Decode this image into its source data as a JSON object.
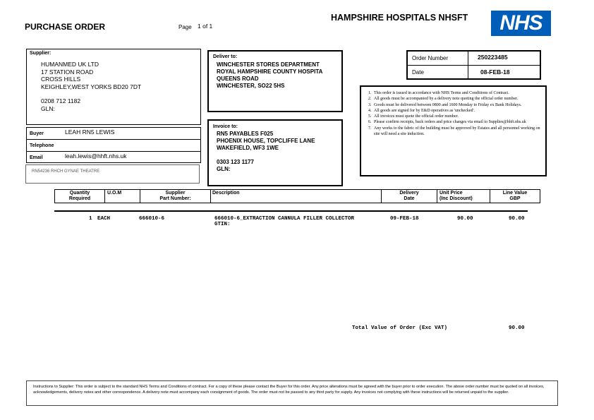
{
  "header": {
    "title": "PURCHASE ORDER",
    "page_label": "Page",
    "page_value": "1 of 1",
    "org": "HAMPSHIRE HOSPITALS NHSFT",
    "logo": "NHS",
    "logo_color": "#005EB8"
  },
  "supplier": {
    "label": "Supplier:",
    "lines": [
      "HUMANMED UK LTD",
      "17 STATION ROAD",
      "CROSS HILLS",
      "KEIGHLEY,WEST YORKS BD20 7DT"
    ],
    "phone": "0208 712 1182",
    "gln": "GLN:"
  },
  "buyer": {
    "buyer_label": "Buyer",
    "buyer": "LEAH RN5 LEWIS",
    "telephone_label": "Telephone",
    "telephone": "",
    "email_label": "Email",
    "email": "leah.lewis@hhft.nhs.uk",
    "ref": "RN54236 RHCH GYNAE THEATRE"
  },
  "deliver": {
    "label": "Deliver to:",
    "lines": [
      "WINCHESTER STORES DEPARTMENT",
      "ROYAL HAMPSHIRE COUNTY HOSPITA",
      "QUEENS ROAD",
      "WINCHESTER, SO22 5HS"
    ]
  },
  "invoice": {
    "label": "Invoice to:",
    "lines": [
      "RN5 PAYABLES F025",
      "PHOENIX HOUSE, TOPCLIFFE LANE",
      "WAKEFIELD, WF3 1WE"
    ],
    "phone": "0303 123 1177",
    "gln": "GLN:"
  },
  "order": {
    "number_label": "Order Number",
    "number": "250223485",
    "date_label": "Date",
    "date": "08-FEB-18"
  },
  "terms": [
    "This order is issued in accordance with NHS Terms and Conditions of Contract.",
    "All goods must be accompanied by a delivery note quoting the official order number.",
    "Goods must be delivered between 0800 and 1600 Monday to Friday ex Bank Holidays.",
    "All goods are signed for by E&D operatives as 'unchecked'.",
    "All invoices must quote the official order number.",
    "Please confirm receipts, back orders and price changes via email to Supplies@hhft.nhs.uk",
    "Any works to the fabric of the building must be approved by Estates and all personnel working on site will need a site induction."
  ],
  "table": {
    "headers": [
      "Quantity\nRequired",
      "U.O.M",
      "Supplier\nPart Number:",
      "Description",
      "Delivery\nDate",
      "Unit Price\n(Inc Discount)",
      "Line Value\nGBP"
    ],
    "rows": [
      {
        "qty": "1",
        "uom": "EACH",
        "part": "666010-6",
        "desc": "666010-6_EXTRACTION CANNULA FILLER COLLECTOR",
        "gtin": "GTIN:",
        "date": "09-FEB-18",
        "unit": "90.00",
        "value": "90.00"
      }
    ]
  },
  "total": {
    "label": "Total Value of Order (Exc VAT)",
    "value": "90.00"
  },
  "footer": "Instructions to Supplier: This order is subject to the standard NHS Terms and Conditions of contract. For a copy of these please contact the Buyer for this order. Any price alterations must be agreed with the buyer prior to order execution. The above order number must be quoted on all invoices, acknowledgements, delivery notes and other correspondence. A delivery note must accompany each consignment of goods. The order must not be passed to any third party for supply. Any invoices not complying with these instructions will be returned unpaid to the supplier."
}
